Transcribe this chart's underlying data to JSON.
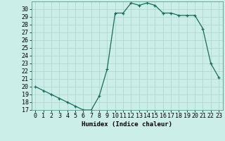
{
  "x": [
    0,
    1,
    2,
    3,
    4,
    5,
    6,
    7,
    8,
    9,
    10,
    11,
    12,
    13,
    14,
    15,
    16,
    17,
    18,
    19,
    20,
    21,
    22,
    23
  ],
  "y": [
    20,
    19.5,
    19,
    18.5,
    18,
    17.5,
    17,
    17,
    18.8,
    22.3,
    29.5,
    29.5,
    30.8,
    30.5,
    30.8,
    30.5,
    29.5,
    29.5,
    29.2,
    29.2,
    29.2,
    27.5,
    23,
    21.2
  ],
  "xlabel": "Humidex (Indice chaleur)",
  "xlim": [
    -0.5,
    23.5
  ],
  "ylim": [
    17,
    31
  ],
  "yticks": [
    17,
    18,
    19,
    20,
    21,
    22,
    23,
    24,
    25,
    26,
    27,
    28,
    29,
    30
  ],
  "xticks": [
    0,
    1,
    2,
    3,
    4,
    5,
    6,
    7,
    8,
    9,
    10,
    11,
    12,
    13,
    14,
    15,
    16,
    17,
    18,
    19,
    20,
    21,
    22,
    23
  ],
  "line_color": "#1a6b5a",
  "marker": "+",
  "bg_color": "#cceee8",
  "grid_color": "#aad4ce",
  "label_fontsize": 6.5,
  "tick_fontsize": 6
}
